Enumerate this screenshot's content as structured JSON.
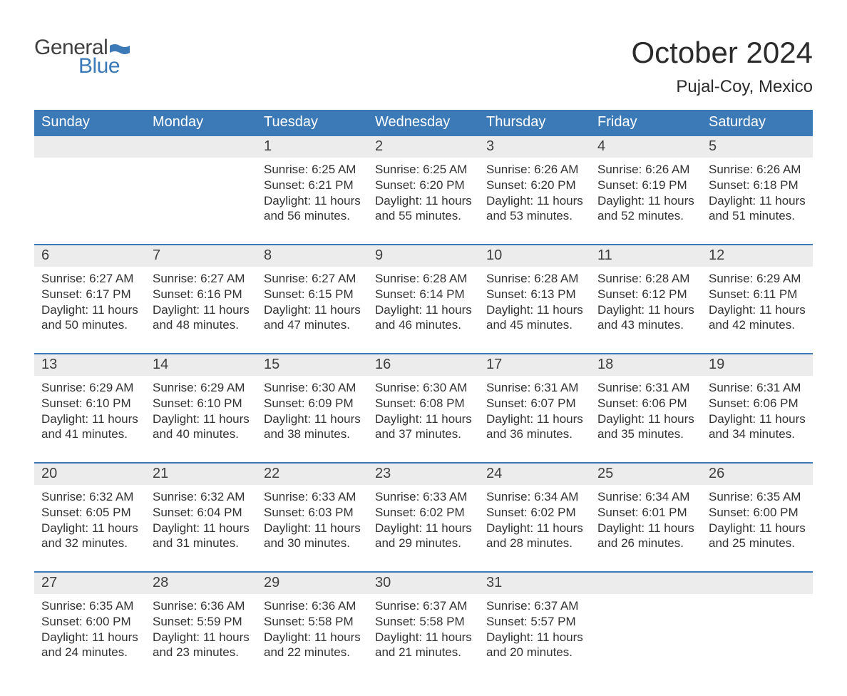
{
  "brand": {
    "word1": "General",
    "word2": "Blue",
    "word1_color": "#404040",
    "word2_color": "#3b79b7",
    "flag_color": "#3b79b7"
  },
  "header": {
    "month_title": "October 2024",
    "location": "Pujal-Coy, Mexico"
  },
  "styling": {
    "header_bg": "#3b79b7",
    "header_text": "#ffffff",
    "daynum_bg": "#ececec",
    "week_border": "#3b79b7",
    "body_text": "#333333",
    "page_bg": "#ffffff",
    "title_fontsize": 42,
    "location_fontsize": 24,
    "dow_fontsize": 20,
    "daynum_fontsize": 20,
    "cell_fontsize": 17
  },
  "days_of_week": [
    "Sunday",
    "Monday",
    "Tuesday",
    "Wednesday",
    "Thursday",
    "Friday",
    "Saturday"
  ],
  "labels": {
    "sunrise": "Sunrise: ",
    "sunset": "Sunset: ",
    "daylight": "Daylight: "
  },
  "weeks": [
    [
      null,
      null,
      {
        "d": "1",
        "sunrise": "6:25 AM",
        "sunset": "6:21 PM",
        "daylight": "11 hours and 56 minutes."
      },
      {
        "d": "2",
        "sunrise": "6:25 AM",
        "sunset": "6:20 PM",
        "daylight": "11 hours and 55 minutes."
      },
      {
        "d": "3",
        "sunrise": "6:26 AM",
        "sunset": "6:20 PM",
        "daylight": "11 hours and 53 minutes."
      },
      {
        "d": "4",
        "sunrise": "6:26 AM",
        "sunset": "6:19 PM",
        "daylight": "11 hours and 52 minutes."
      },
      {
        "d": "5",
        "sunrise": "6:26 AM",
        "sunset": "6:18 PM",
        "daylight": "11 hours and 51 minutes."
      }
    ],
    [
      {
        "d": "6",
        "sunrise": "6:27 AM",
        "sunset": "6:17 PM",
        "daylight": "11 hours and 50 minutes."
      },
      {
        "d": "7",
        "sunrise": "6:27 AM",
        "sunset": "6:16 PM",
        "daylight": "11 hours and 48 minutes."
      },
      {
        "d": "8",
        "sunrise": "6:27 AM",
        "sunset": "6:15 PM",
        "daylight": "11 hours and 47 minutes."
      },
      {
        "d": "9",
        "sunrise": "6:28 AM",
        "sunset": "6:14 PM",
        "daylight": "11 hours and 46 minutes."
      },
      {
        "d": "10",
        "sunrise": "6:28 AM",
        "sunset": "6:13 PM",
        "daylight": "11 hours and 45 minutes."
      },
      {
        "d": "11",
        "sunrise": "6:28 AM",
        "sunset": "6:12 PM",
        "daylight": "11 hours and 43 minutes."
      },
      {
        "d": "12",
        "sunrise": "6:29 AM",
        "sunset": "6:11 PM",
        "daylight": "11 hours and 42 minutes."
      }
    ],
    [
      {
        "d": "13",
        "sunrise": "6:29 AM",
        "sunset": "6:10 PM",
        "daylight": "11 hours and 41 minutes."
      },
      {
        "d": "14",
        "sunrise": "6:29 AM",
        "sunset": "6:10 PM",
        "daylight": "11 hours and 40 minutes."
      },
      {
        "d": "15",
        "sunrise": "6:30 AM",
        "sunset": "6:09 PM",
        "daylight": "11 hours and 38 minutes."
      },
      {
        "d": "16",
        "sunrise": "6:30 AM",
        "sunset": "6:08 PM",
        "daylight": "11 hours and 37 minutes."
      },
      {
        "d": "17",
        "sunrise": "6:31 AM",
        "sunset": "6:07 PM",
        "daylight": "11 hours and 36 minutes."
      },
      {
        "d": "18",
        "sunrise": "6:31 AM",
        "sunset": "6:06 PM",
        "daylight": "11 hours and 35 minutes."
      },
      {
        "d": "19",
        "sunrise": "6:31 AM",
        "sunset": "6:06 PM",
        "daylight": "11 hours and 34 minutes."
      }
    ],
    [
      {
        "d": "20",
        "sunrise": "6:32 AM",
        "sunset": "6:05 PM",
        "daylight": "11 hours and 32 minutes."
      },
      {
        "d": "21",
        "sunrise": "6:32 AM",
        "sunset": "6:04 PM",
        "daylight": "11 hours and 31 minutes."
      },
      {
        "d": "22",
        "sunrise": "6:33 AM",
        "sunset": "6:03 PM",
        "daylight": "11 hours and 30 minutes."
      },
      {
        "d": "23",
        "sunrise": "6:33 AM",
        "sunset": "6:02 PM",
        "daylight": "11 hours and 29 minutes."
      },
      {
        "d": "24",
        "sunrise": "6:34 AM",
        "sunset": "6:02 PM",
        "daylight": "11 hours and 28 minutes."
      },
      {
        "d": "25",
        "sunrise": "6:34 AM",
        "sunset": "6:01 PM",
        "daylight": "11 hours and 26 minutes."
      },
      {
        "d": "26",
        "sunrise": "6:35 AM",
        "sunset": "6:00 PM",
        "daylight": "11 hours and 25 minutes."
      }
    ],
    [
      {
        "d": "27",
        "sunrise": "6:35 AM",
        "sunset": "6:00 PM",
        "daylight": "11 hours and 24 minutes."
      },
      {
        "d": "28",
        "sunrise": "6:36 AM",
        "sunset": "5:59 PM",
        "daylight": "11 hours and 23 minutes."
      },
      {
        "d": "29",
        "sunrise": "6:36 AM",
        "sunset": "5:58 PM",
        "daylight": "11 hours and 22 minutes."
      },
      {
        "d": "30",
        "sunrise": "6:37 AM",
        "sunset": "5:58 PM",
        "daylight": "11 hours and 21 minutes."
      },
      {
        "d": "31",
        "sunrise": "6:37 AM",
        "sunset": "5:57 PM",
        "daylight": "11 hours and 20 minutes."
      },
      null,
      null
    ]
  ]
}
